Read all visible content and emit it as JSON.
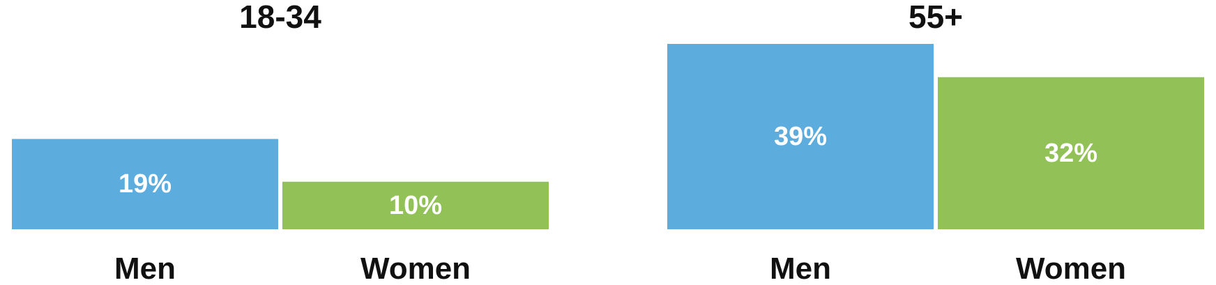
{
  "chart_data": [
    {
      "type": "bar",
      "title": "18-34",
      "categories": [
        "Men",
        "Women"
      ],
      "values": [
        19,
        10
      ],
      "data_labels": [
        "19%",
        "10%"
      ],
      "unit": "%",
      "ylim": [
        0,
        39
      ],
      "colors": [
        "#5DACDE",
        "#92C257"
      ],
      "grid": false
    },
    {
      "type": "bar",
      "title": "55+",
      "categories": [
        "Men",
        "Women"
      ],
      "values": [
        39,
        32
      ],
      "data_labels": [
        "39%",
        "32%"
      ],
      "unit": "%",
      "ylim": [
        0,
        39
      ],
      "colors": [
        "#5DACDE",
        "#92C257"
      ],
      "grid": false
    }
  ]
}
